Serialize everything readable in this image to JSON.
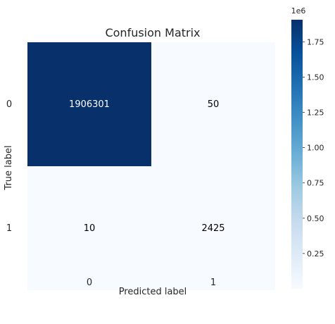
{
  "chart_data": {
    "type": "heatmap",
    "title": "Confusion Matrix",
    "xlabel": "Predicted label",
    "ylabel": "True label",
    "x_categories": [
      "0",
      "1"
    ],
    "y_categories": [
      "0",
      "1"
    ],
    "matrix": [
      [
        1906301,
        50
      ],
      [
        10,
        2425
      ]
    ],
    "matrix_labels": [
      [
        "1906301",
        "50"
      ],
      [
        "10",
        "2425"
      ]
    ],
    "colormap": "Blues",
    "colormap_low": "#f7fbff",
    "colormap_high": "#08306b",
    "text_light": "#ffffff",
    "text_dark": "#000000",
    "colorbar": {
      "min": 0,
      "max": 1906301,
      "ticks": [
        0.25,
        0.5,
        0.75,
        1.0,
        1.25,
        1.5,
        1.75
      ],
      "tick_labels": [
        "0.25",
        "0.50",
        "0.75",
        "1.00",
        "1.25",
        "1.50",
        "1.75"
      ],
      "multiplier": "1e6",
      "scale": 1000000
    },
    "grid": false
  }
}
